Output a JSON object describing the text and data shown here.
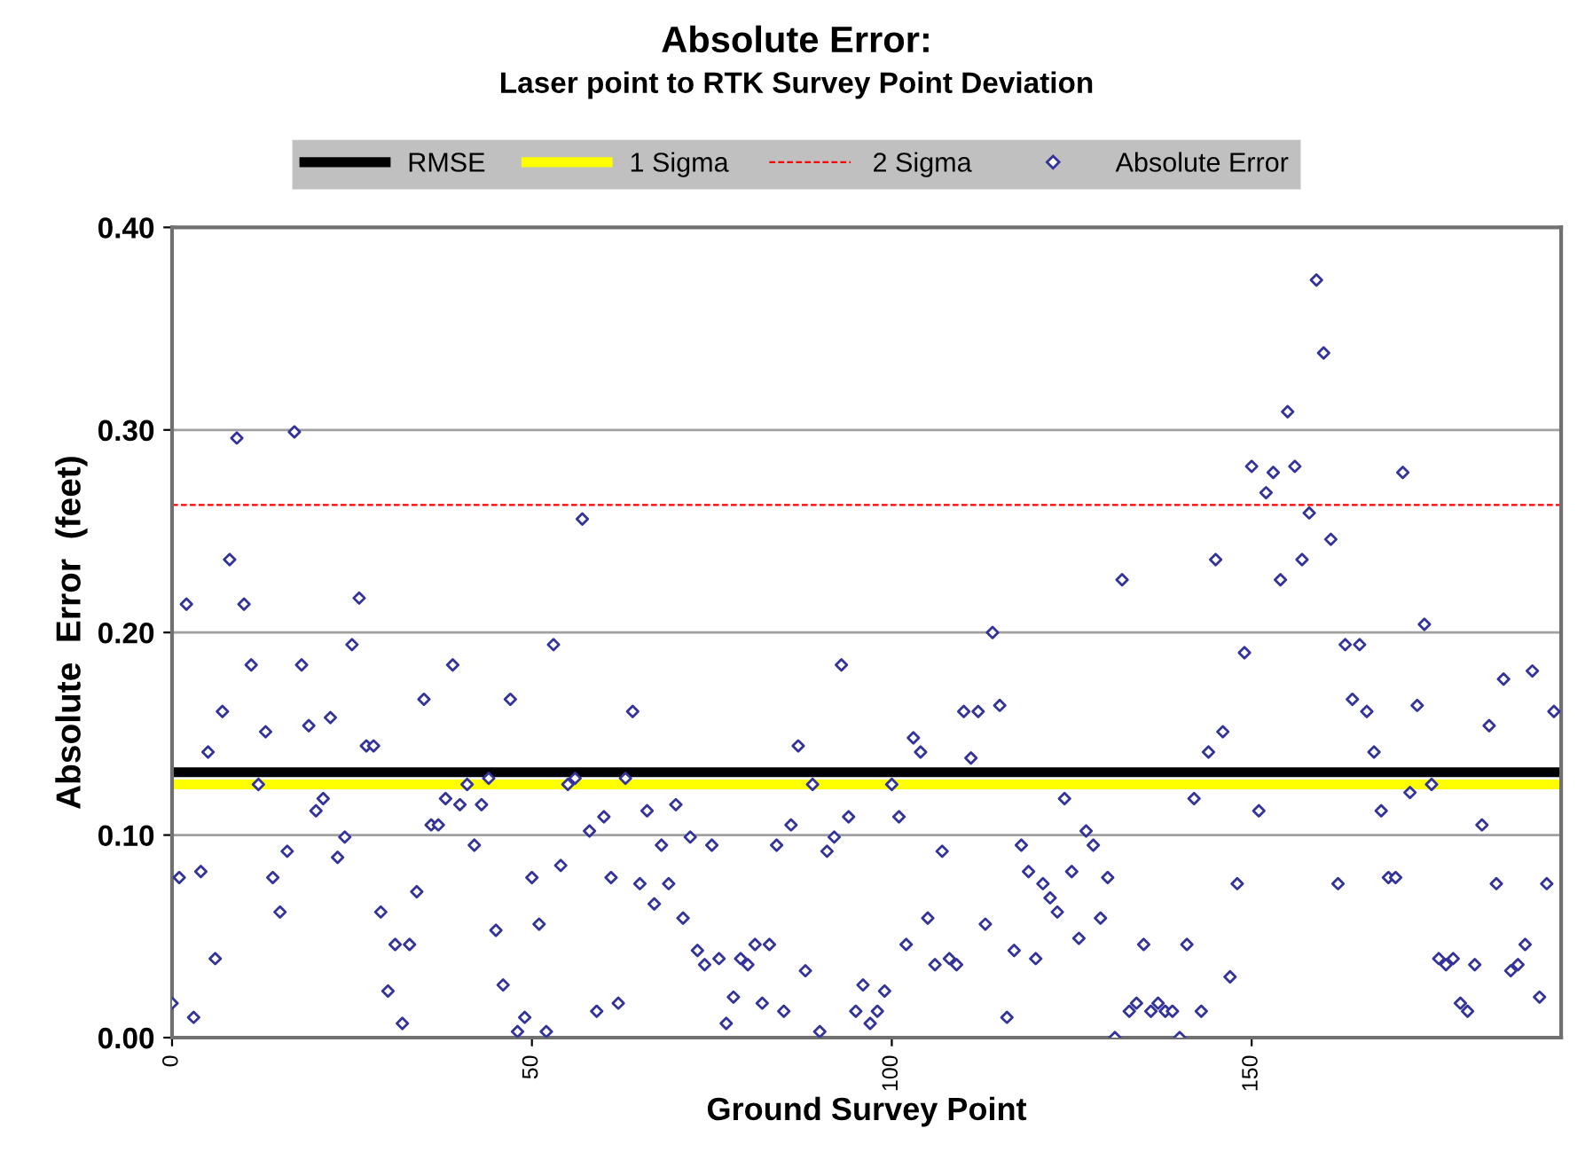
{
  "chart_data": {
    "type": "scatter",
    "title": "Absolute Error:",
    "subtitle": "Laser point to RTK Survey Point Deviation",
    "xlabel": "Ground Survey Point",
    "ylabel": "Absolute  Error  (feet)",
    "x": [
      0,
      1,
      2,
      3,
      4,
      5,
      6,
      7,
      8,
      9,
      10,
      11,
      12,
      13,
      14,
      15,
      16,
      17,
      18,
      19,
      20,
      21,
      22,
      23,
      24,
      25,
      26,
      27,
      28,
      29,
      30,
      31,
      32,
      33,
      34,
      35,
      36,
      37,
      38,
      39,
      40,
      41,
      42,
      43,
      44,
      45,
      46,
      47,
      48,
      49,
      50,
      51,
      52,
      53,
      54,
      55,
      56,
      57,
      58,
      59,
      60,
      61,
      62,
      63,
      64,
      65,
      66,
      67,
      68,
      69,
      70,
      71,
      72,
      73,
      74,
      75,
      76,
      77,
      78,
      79,
      80,
      81,
      82,
      83,
      84,
      85,
      86,
      87,
      88,
      89,
      90,
      91,
      92,
      93,
      94,
      95,
      96,
      97,
      98,
      99,
      100,
      101,
      102,
      103,
      104,
      105,
      106,
      107,
      108,
      109,
      110,
      111,
      112,
      113,
      114,
      115,
      116,
      117,
      118,
      119,
      120,
      121,
      122,
      123,
      124,
      125,
      126,
      127,
      128,
      129,
      130,
      131,
      132,
      133,
      134,
      135,
      136,
      137,
      138,
      139,
      140,
      141,
      142,
      143,
      144,
      145,
      146,
      147,
      148,
      149,
      150,
      151,
      152,
      153,
      154,
      155,
      156,
      157,
      158,
      159,
      160,
      161,
      162,
      163,
      164,
      165,
      166,
      167,
      168,
      169,
      170,
      171,
      172,
      173,
      174,
      175,
      176,
      177,
      178,
      179,
      180,
      181,
      182,
      183,
      184,
      185,
      186,
      187,
      188,
      189,
      190,
      191,
      192
    ],
    "xlim": [
      0,
      193
    ],
    "xticks": [
      0,
      50,
      100,
      150
    ],
    "ylim": [
      0,
      0.4
    ],
    "yticks": [
      {
        "value": 0,
        "label": "0.00"
      },
      {
        "value": 0.1,
        "label": "0.10"
      },
      {
        "value": 0.2,
        "label": "0.20"
      },
      {
        "value": 0.3,
        "label": "0.30"
      },
      {
        "value": 0.4,
        "label": "0.40"
      }
    ],
    "grid": "y",
    "legend": "top",
    "marker": "diamond",
    "ref_lines": [
      {
        "axis": "y",
        "value": 0.131,
        "label": "RMSE",
        "color": "#000000",
        "line_style": "solid"
      },
      {
        "axis": "y",
        "value": 0.125,
        "label": "1 Sigma",
        "color": "#ffff00",
        "line_style": "solid"
      },
      {
        "axis": "y",
        "value": 0.263,
        "label": "2 Sigma",
        "color": "#ff0000",
        "line_style": "dashed"
      }
    ],
    "series": [
      {
        "name": "Absolute Error",
        "color": "#33339a",
        "values": [
          0.017,
          0.079,
          0.214,
          0.01,
          0.082,
          0.141,
          0.039,
          0.161,
          0.236,
          0.296,
          0.214,
          0.184,
          0.125,
          0.151,
          0.079,
          0.062,
          0.092,
          0.299,
          0.184,
          0.154,
          0.112,
          0.118,
          0.158,
          0.089,
          0.099,
          0.194,
          0.217,
          0.144,
          0.144,
          0.062,
          0.023,
          0.046,
          0.007,
          0.046,
          0.072,
          0.167,
          0.105,
          0.105,
          0.118,
          0.184,
          0.115,
          0.125,
          0.095,
          0.115,
          0.128,
          0.053,
          0.026,
          0.167,
          0.003,
          0.01,
          0.079,
          0.056,
          0.003,
          0.194,
          0.085,
          0.125,
          0.128,
          0.256,
          0.102,
          0.013,
          0.109,
          0.079,
          0.017,
          0.128,
          0.161,
          0.076,
          0.112,
          0.066,
          0.095,
          0.076,
          0.115,
          0.059,
          0.099,
          0.043,
          0.036,
          0.095,
          0.039,
          0.007,
          0.02,
          0.039,
          0.036,
          0.046,
          0.017,
          0.046,
          0.095,
          0.013,
          0.105,
          0.144,
          0.033,
          0.125,
          0.003,
          0.092,
          0.099,
          0.184,
          0.109,
          0.013,
          0.026,
          0.007,
          0.013,
          0.023,
          0.125,
          0.109,
          0.046,
          0.148,
          0.141,
          0.059,
          0.036,
          0.092,
          0.039,
          0.036,
          0.161,
          0.138,
          0.161,
          0.056,
          0.2,
          0.164,
          0.01,
          0.043,
          0.095,
          0.082,
          0.039,
          0.076,
          0.069,
          0.062,
          0.118,
          0.082,
          0.049,
          0.102,
          0.095,
          0.059,
          0.079,
          0.0,
          0.226,
          0.013,
          0.017,
          0.046,
          0.013,
          0.017,
          0.013,
          0.013,
          0.0,
          0.046,
          0.118,
          0.013,
          0.141,
          0.236,
          0.151,
          0.03,
          0.076,
          0.19,
          0.282,
          0.112,
          0.269,
          0.279,
          0.226,
          0.309,
          0.282,
          0.236,
          0.259,
          0.374,
          0.338,
          0.246,
          0.076,
          0.194,
          0.167,
          0.194,
          0.161,
          0.141,
          0.112,
          0.079,
          0.079,
          0.279,
          0.121,
          0.164,
          0.204,
          0.125,
          0.039,
          0.036,
          0.039,
          0.017,
          0.013,
          0.036,
          0.105,
          0.154,
          0.076,
          0.177,
          0.033,
          0.036,
          0.046,
          0.181,
          0.02,
          0.076,
          0.161
        ]
      }
    ]
  }
}
